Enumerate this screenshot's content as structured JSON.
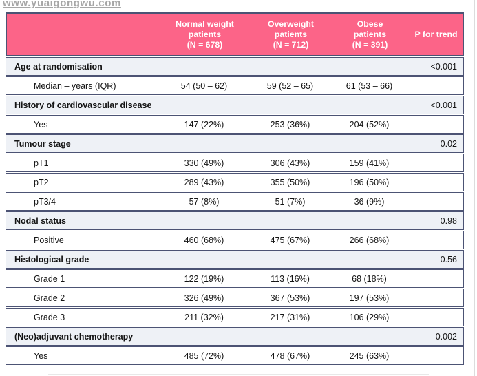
{
  "watermark": "www.yuaigongwu.com",
  "colors": {
    "header_bg": "#fc6488",
    "header_text": "#ffffff",
    "border": "#4c5374",
    "category_bg": "#eef1f6",
    "row_bg": "#ffffff",
    "text": "#141414",
    "watermark_color": "#a6a6a6"
  },
  "header": {
    "columns": [
      {
        "lines": [
          "Normal weight",
          "patients",
          "(N = 678)"
        ]
      },
      {
        "lines": [
          "Overweight",
          "patients",
          "(N = 712)"
        ]
      },
      {
        "lines": [
          "Obese",
          "patients",
          "(N = 391)"
        ]
      }
    ],
    "p_label": "P for trend"
  },
  "rows": [
    {
      "type": "category",
      "label": "Age at randomisation",
      "p": "<0.001"
    },
    {
      "type": "data",
      "label": "Median – years (IQR)",
      "values": [
        "54 (50 – 62)",
        "59 (52 – 65)",
        "61 (53 – 66)"
      ]
    },
    {
      "type": "category",
      "label": "History of cardiovascular disease",
      "p": "<0.001"
    },
    {
      "type": "data",
      "label": "Yes",
      "values": [
        "147 (22%)",
        "253 (36%)",
        "204 (52%)"
      ]
    },
    {
      "type": "category",
      "label": "Tumour stage",
      "p": "0.02"
    },
    {
      "type": "data",
      "label": "pT1",
      "values": [
        "330 (49%)",
        "306 (43%)",
        "159 (41%)"
      ]
    },
    {
      "type": "data",
      "label": "pT2",
      "values": [
        "289 (43%)",
        "355 (50%)",
        "196 (50%)"
      ]
    },
    {
      "type": "data",
      "label": "pT3/4",
      "values": [
        "57 (8%)",
        "51 (7%)",
        "36 (9%)"
      ]
    },
    {
      "type": "category",
      "label": "Nodal status",
      "p": "0.98"
    },
    {
      "type": "data",
      "label": "Positive",
      "values": [
        "460 (68%)",
        "475 (67%)",
        "266 (68%)"
      ]
    },
    {
      "type": "category",
      "label": "Histological grade",
      "p": "0.56"
    },
    {
      "type": "data",
      "label": "Grade 1",
      "values": [
        "122 (19%)",
        "113 (16%)",
        "68 (18%)"
      ]
    },
    {
      "type": "data",
      "label": "Grade 2",
      "values": [
        "326 (49%)",
        "367 (53%)",
        "197 (53%)"
      ]
    },
    {
      "type": "data",
      "label": "Grade 3",
      "values": [
        "211 (32%)",
        "217 (31%)",
        "106 (29%)"
      ]
    },
    {
      "type": "category",
      "label": "(Neo)adjuvant chemotherapy",
      "p": "0.002"
    },
    {
      "type": "data",
      "label": "Yes",
      "values": [
        "485 (72%)",
        "478 (67%)",
        "245 (63%)"
      ]
    }
  ]
}
